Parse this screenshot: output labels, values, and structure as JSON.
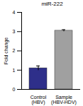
{
  "chart_data": {
    "type": "bar",
    "title": "miR-222",
    "y_label": "Fold change",
    "categories": [
      "Control\n(HBV)",
      "Sample\n(HBV-HDV)"
    ],
    "values": [
      1.1,
      3.05
    ],
    "errors": [
      0.12,
      0.05
    ],
    "colors": [
      "#2e2f8a",
      "#a0a0a0"
    ],
    "ylim": [
      0,
      4
    ],
    "yticks": [
      0,
      1,
      2,
      3,
      4
    ],
    "grid": false
  }
}
